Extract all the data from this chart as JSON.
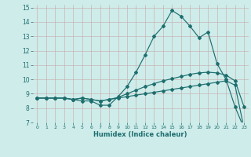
{
  "xlabel": "Humidex (Indice chaleur)",
  "xlim": [
    -0.5,
    23.5
  ],
  "ylim": [
    7,
    15.2
  ],
  "yticks": [
    7,
    8,
    9,
    10,
    11,
    12,
    13,
    14,
    15
  ],
  "xticks": [
    0,
    1,
    2,
    3,
    4,
    5,
    6,
    7,
    8,
    9,
    10,
    11,
    12,
    13,
    14,
    15,
    16,
    17,
    18,
    19,
    20,
    21,
    22,
    23
  ],
  "bg_color": "#ceecea",
  "line_color": "#1e6e6e",
  "line1_y": [
    8.7,
    8.7,
    8.7,
    8.7,
    8.6,
    8.5,
    8.5,
    8.2,
    8.2,
    8.8,
    9.5,
    10.5,
    11.7,
    13.0,
    13.7,
    14.8,
    14.4,
    13.7,
    12.9,
    13.3,
    11.1,
    10.0,
    8.1,
    6.6
  ],
  "line2_y": [
    8.7,
    8.7,
    8.7,
    8.7,
    8.6,
    8.7,
    8.6,
    8.5,
    8.6,
    8.75,
    9.0,
    9.25,
    9.5,
    9.7,
    9.9,
    10.05,
    10.2,
    10.35,
    10.45,
    10.5,
    10.45,
    10.3,
    9.9,
    8.1
  ],
  "line3_y": [
    8.7,
    8.7,
    8.7,
    8.7,
    8.6,
    8.7,
    8.6,
    8.5,
    8.6,
    8.7,
    8.8,
    8.9,
    9.0,
    9.1,
    9.2,
    9.3,
    9.4,
    9.5,
    9.6,
    9.7,
    9.8,
    9.9,
    9.6,
    6.6
  ]
}
